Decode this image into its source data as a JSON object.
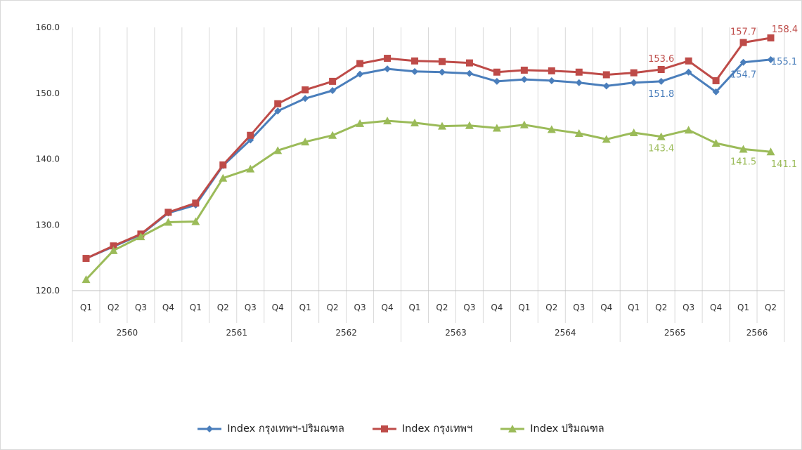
{
  "chart_data": {
    "type": "line",
    "yticks": [
      "120.0",
      "130.0",
      "140.0",
      "150.0",
      "160.0"
    ],
    "ylim": [
      120,
      160
    ],
    "categories": [
      "Q1",
      "Q2",
      "Q3",
      "Q4",
      "Q1",
      "Q2",
      "Q3",
      "Q4",
      "Q1",
      "Q2",
      "Q3",
      "Q4",
      "Q1",
      "Q2",
      "Q3",
      "Q4",
      "Q1",
      "Q2",
      "Q3",
      "Q4",
      "Q1",
      "Q2",
      "Q3",
      "Q4",
      "Q1",
      "Q2"
    ],
    "groups": [
      {
        "label": "2560",
        "count": 4
      },
      {
        "label": "2561",
        "count": 4
      },
      {
        "label": "2562",
        "count": 4
      },
      {
        "label": "2563",
        "count": 4
      },
      {
        "label": "2564",
        "count": 4
      },
      {
        "label": "2565",
        "count": 4
      },
      {
        "label": "2566",
        "count": 2
      }
    ],
    "grid": "vertical",
    "legend_position": "bottom",
    "series": [
      {
        "name": "Index กรุงเทพฯ-ปริมณฑล",
        "color": "#4a7ebb",
        "marker": "diamond",
        "values": [
          124.9,
          126.7,
          128.5,
          131.8,
          133.0,
          139.0,
          142.9,
          147.3,
          149.2,
          150.4,
          152.9,
          153.7,
          153.3,
          153.2,
          153.0,
          151.8,
          152.1,
          151.9,
          151.6,
          151.1,
          151.6,
          151.8,
          153.2,
          150.2,
          154.7,
          155.1
        ],
        "labels": {
          "21": "151.8",
          "24": "154.7",
          "25": "155.1"
        }
      },
      {
        "name": "Index กรุงเทพฯ",
        "color": "#be4b48",
        "marker": "square",
        "values": [
          124.9,
          126.8,
          128.6,
          131.9,
          133.3,
          139.1,
          143.6,
          148.4,
          150.5,
          151.8,
          154.5,
          155.3,
          154.9,
          154.8,
          154.6,
          153.2,
          153.5,
          153.4,
          153.2,
          152.8,
          153.1,
          153.6,
          154.9,
          151.9,
          157.7,
          158.4
        ],
        "labels": {
          "21": "153.6",
          "24": "157.7",
          "25": "158.4"
        }
      },
      {
        "name": "Index ปริมณฑล",
        "color": "#9bbb59",
        "marker": "triangle",
        "values": [
          121.7,
          126.1,
          128.2,
          130.4,
          130.5,
          137.1,
          138.5,
          141.3,
          142.6,
          143.6,
          145.4,
          145.8,
          145.5,
          145.0,
          145.1,
          144.7,
          145.2,
          144.5,
          143.9,
          143.0,
          144.0,
          143.4,
          144.4,
          142.4,
          141.5,
          141.1
        ],
        "labels": {
          "21": "143.4",
          "24": "141.5",
          "25": "141.1"
        }
      }
    ]
  }
}
